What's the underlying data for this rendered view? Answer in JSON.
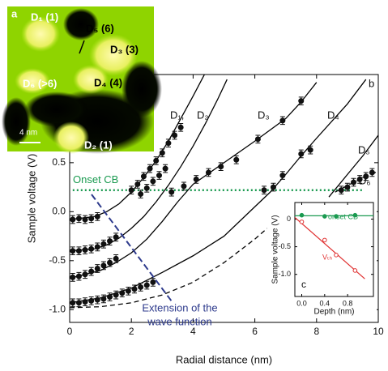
{
  "image": {
    "labels": [
      "a",
      "D₁ (1)",
      "D₅ (6)",
      "D₃ (3)",
      "D₆ (>6)",
      "D₄ (4)",
      "D₂ (1)",
      "4 nm"
    ]
  },
  "chart_data": [
    {
      "type": "scatter",
      "label": "b",
      "xlabel": "Radial distance (nm)",
      "ylabel": "Sample voltage (V)",
      "xlim": [
        0,
        10
      ],
      "ylim": [
        -1.13,
        1.4
      ],
      "xticks": [
        0,
        2,
        4,
        6,
        8,
        10
      ],
      "yticks": [
        {
          "value": -1,
          "label": "-1.0"
        },
        -0.5,
        {
          "value": 0,
          "label": "0.0"
        },
        0.5
      ],
      "series": [
        {
          "color": "#111111",
          "error": 0.04,
          "x": [
            0.1,
            0.3,
            0.5,
            0.7,
            0.9,
            2.0,
            2.2,
            2.4,
            2.6,
            2.8,
            3.0,
            3.2,
            3.4,
            3.6
          ],
          "values": [
            -0.08,
            -0.07,
            -0.08,
            -0.07,
            -0.05,
            0.22,
            0.28,
            0.36,
            0.44,
            0.52,
            0.6,
            0.7,
            0.78,
            0.86
          ]
        },
        {
          "color": "#111111",
          "error": 0.04,
          "x": [
            0.1,
            0.3,
            0.5,
            0.7,
            0.9,
            1.1,
            1.3,
            1.5,
            2.3,
            2.5,
            2.7,
            2.9,
            3.1
          ],
          "values": [
            -0.4,
            -0.4,
            -0.39,
            -0.38,
            -0.36,
            -0.33,
            -0.3,
            -0.26,
            0.18,
            0.24,
            0.31,
            0.37,
            0.44
          ]
        },
        {
          "color": "#111111",
          "error": 0.04,
          "x": [
            0.1,
            0.3,
            0.5,
            0.7,
            0.9,
            1.1,
            1.3,
            1.5,
            3.3,
            3.7,
            4.1,
            4.5,
            4.9,
            5.4,
            6.1,
            6.9,
            7.5
          ],
          "values": [
            -0.67,
            -0.66,
            -0.64,
            -0.61,
            -0.58,
            -0.55,
            -0.52,
            -0.48,
            0.2,
            0.26,
            0.33,
            0.4,
            0.46,
            0.53,
            0.74,
            0.93,
            1.13
          ]
        },
        {
          "color": "#111111",
          "error": 0.04,
          "x": [
            0.1,
            0.3,
            0.5,
            0.7,
            0.9,
            1.1,
            1.3,
            1.5,
            1.7,
            1.9,
            2.1,
            2.3,
            2.5,
            2.7,
            6.3,
            6.6,
            6.9,
            7.5,
            7.8,
            8.8,
            9.0,
            9.2,
            9.4,
            9.6,
            9.8
          ],
          "values": [
            -0.93,
            -0.93,
            -0.92,
            -0.91,
            -0.9,
            -0.89,
            -0.87,
            -0.85,
            -0.83,
            -0.81,
            -0.79,
            -0.77,
            -0.75,
            -0.72,
            0.22,
            0.25,
            0.37,
            0.59,
            0.63,
            0.22,
            0.25,
            0.3,
            0.33,
            0.36,
            0.4
          ]
        }
      ],
      "curves": [
        {
          "dash": false,
          "x": [
            0,
            0.8,
            1.2,
            1.6,
            2.0,
            2.4,
            2.8,
            3.2,
            3.6,
            4.0,
            4.4
          ],
          "values": [
            -0.08,
            -0.05,
            0.0,
            0.08,
            0.2,
            0.35,
            0.52,
            0.72,
            0.95,
            1.18,
            1.42
          ]
        },
        {
          "dash": false,
          "x": [
            0,
            0.8,
            1.2,
            1.6,
            2.0,
            2.4,
            2.8,
            3.2,
            3.6,
            4.0,
            4.4,
            4.8,
            5.1
          ],
          "values": [
            -0.4,
            -0.38,
            -0.34,
            -0.27,
            -0.17,
            -0.05,
            0.1,
            0.27,
            0.46,
            0.67,
            0.9,
            1.15,
            1.35
          ]
        },
        {
          "dash": false,
          "x": [
            0,
            1,
            1.5,
            2,
            2.5,
            3,
            3.5,
            4,
            5,
            6,
            7,
            7.5,
            8
          ],
          "values": [
            -0.68,
            -0.6,
            -0.52,
            -0.42,
            -0.28,
            -0.1,
            0.1,
            0.28,
            0.5,
            0.72,
            0.95,
            1.12,
            1.32
          ]
        },
        {
          "dash": false,
          "x": [
            0,
            1,
            2,
            3,
            4,
            5,
            6,
            6.5,
            7,
            7.5,
            8,
            9,
            9.6
          ],
          "values": [
            -0.93,
            -0.88,
            -0.78,
            -0.62,
            -0.45,
            -0.25,
            0.05,
            0.2,
            0.38,
            0.57,
            0.75,
            1.1,
            1.35
          ]
        },
        {
          "dash": false,
          "x": [
            8.4,
            9,
            9.5,
            10
          ],
          "values": [
            0.15,
            0.38,
            0.57,
            0.78
          ]
        },
        {
          "dash": true,
          "x": [
            0,
            1,
            2,
            3,
            4,
            5,
            6,
            6.4
          ],
          "values": [
            -0.98,
            -0.97,
            -0.93,
            -0.85,
            -0.72,
            -0.52,
            -0.28,
            -0.17
          ]
        },
        {
          "dash": true,
          "x": [
            8.6,
            9.2,
            9.8,
            10
          ],
          "values": [
            0.2,
            0.3,
            0.38,
            0.42
          ]
        }
      ],
      "curve_labels": [
        "D₁,",
        "D₂",
        "D₃",
        "D₄",
        "D₅",
        "D₆"
      ],
      "reference_line": {
        "label": "Onset CB",
        "value": 0.22,
        "color": "#1a9a50"
      },
      "arrow_label": [
        "Extension of the",
        "wave function"
      ]
    },
    {
      "type": "scatter",
      "label": "c",
      "xlabel": "Depth (nm)",
      "ylabel": "Sample voltage (V)",
      "xlim": [
        -0.12,
        1.25
      ],
      "ylim": [
        -1.4,
        0.3
      ],
      "xticks": [
        {
          "value": 0,
          "label": "0.0"
        },
        0.4,
        0.8
      ],
      "yticks": [
        0,
        -0.5,
        {
          "value": -1,
          "label": "-1.0"
        }
      ],
      "series": [
        {
          "name": "onset CB",
          "color": "#1a9a50",
          "filled": true,
          "x": [
            0,
            0.4,
            0.6,
            0.93
          ],
          "values": [
            0.07,
            0.05,
            0.05,
            0.07
          ],
          "fit_x": [
            -0.12,
            1.25
          ],
          "fit_values": [
            0.06,
            0.06
          ]
        },
        {
          "name": "Vₜₕ",
          "color": "#e03030",
          "filled": false,
          "x": [
            0,
            0.4,
            0.6,
            0.93
          ],
          "values": [
            -0.05,
            -0.38,
            -0.65,
            -0.93
          ],
          "fit_x": [
            -0.12,
            1.1
          ],
          "fit_values": [
            0.03,
            -1.08
          ]
        }
      ]
    }
  ]
}
